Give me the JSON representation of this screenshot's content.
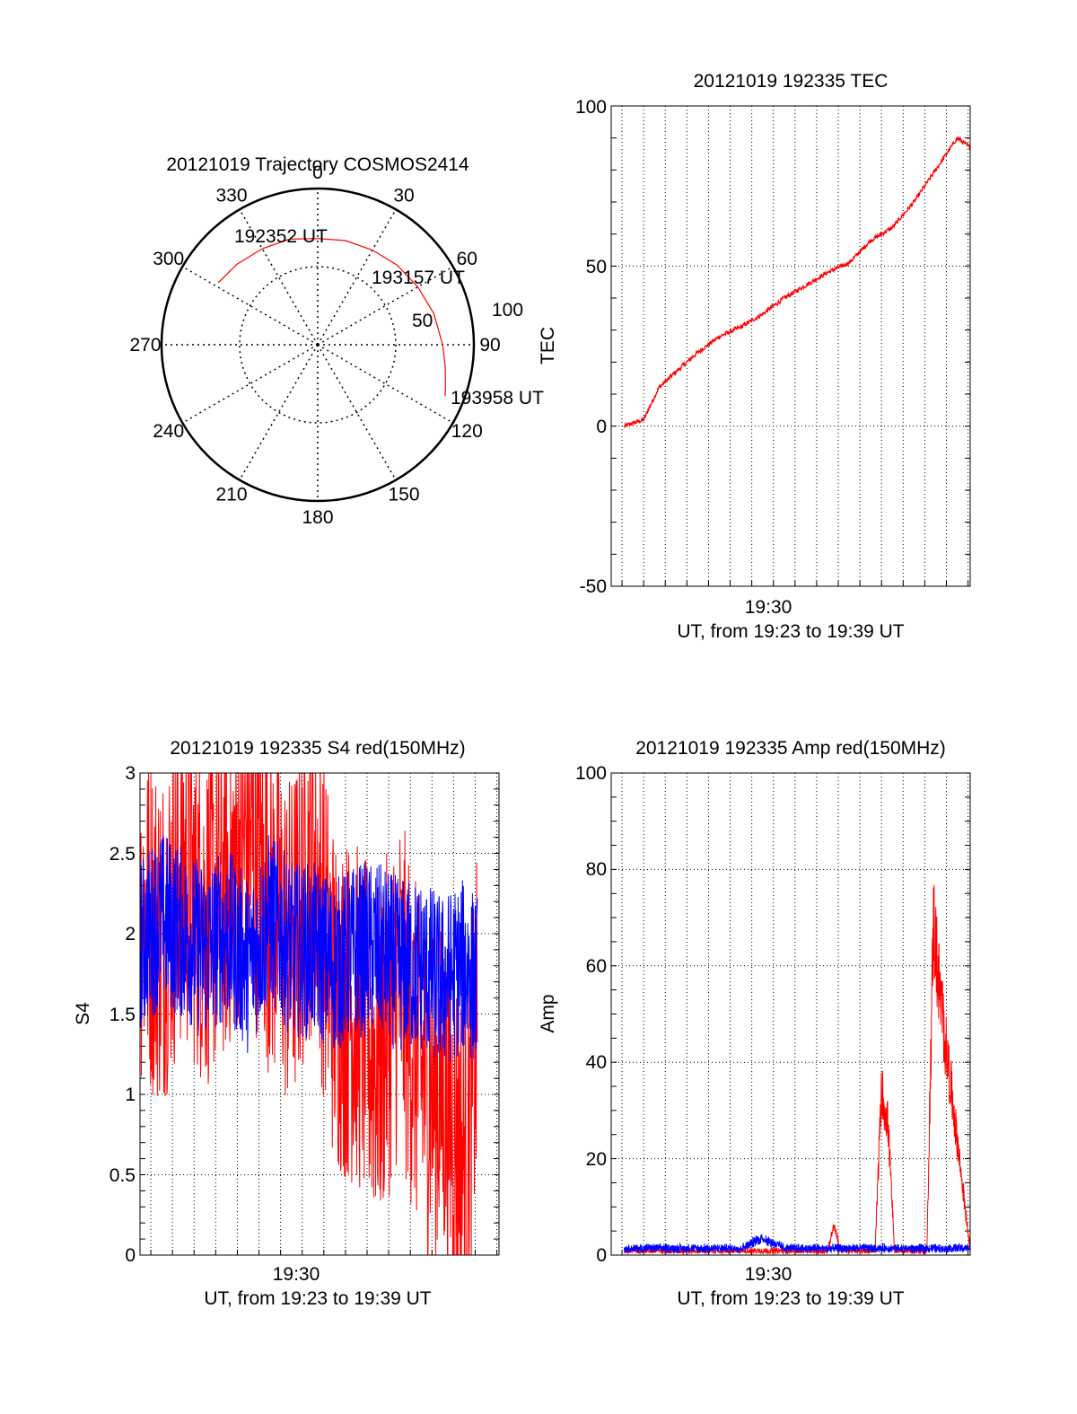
{
  "colors": {
    "red": "#ff0000",
    "blue": "#0000ff",
    "axis": "#000000",
    "grid": "#000000"
  },
  "chart_data": [
    {
      "type": "polar",
      "title": "20121019 Trajectory COSMOS2414",
      "angle_labels": [
        "0",
        "30",
        "60",
        "90",
        "120",
        "150",
        "180",
        "210",
        "240",
        "270",
        "300",
        "330"
      ],
      "radial_tick_labels": [
        "50",
        "100"
      ],
      "series": [
        {
          "color": "red",
          "azimuth_deg": [
            302,
            315,
            330,
            345,
            0,
            15,
            30,
            45,
            60,
            75,
            90,
            100,
            108,
            112
          ],
          "zenith_angle": [
            75,
            73,
            71,
            70,
            68,
            69,
            70,
            72,
            74,
            77,
            80,
            83,
            86,
            88
          ]
        }
      ],
      "annotations": [
        "192352 UT",
        "193157 UT",
        "193958 UT"
      ]
    },
    {
      "type": "line",
      "title": "20121019 192335 TEC",
      "ylabel": "TEC",
      "xlabel": "UT, from 19:23 to 19:39 UT",
      "xtick_labels": [
        "19:30"
      ],
      "ytick_labels": [
        "-50",
        "0",
        "50",
        "100"
      ],
      "ylim": [
        -50,
        100
      ],
      "grid": true,
      "series": [
        {
          "color": "red",
          "x_minutes_utc": [
            1403.6,
            1404.5,
            1405.2,
            1406.0,
            1407.0,
            1408.0,
            1409.0,
            1410.0,
            1411.0,
            1412.0,
            1413.0,
            1414.0,
            1415.0,
            1416.0,
            1417.0,
            1418.0,
            1419.0,
            1419.6
          ],
          "values": [
            0,
            2,
            12,
            17,
            23,
            28,
            31,
            35,
            40,
            44,
            48,
            51,
            58,
            62,
            70,
            80,
            90,
            87
          ]
        }
      ]
    },
    {
      "type": "line",
      "title": "20121019 192335 S4 red(150MHz)",
      "ylabel": "S4",
      "xlabel": "UT, from 19:23 to 19:39 UT",
      "xtick_labels": [
        "19:30"
      ],
      "ytick_labels": [
        "0",
        "0.5",
        "1",
        "1.5",
        "2",
        "2.5",
        "3"
      ],
      "ylim": [
        0,
        3
      ],
      "grid": true,
      "series": [
        {
          "color": "red",
          "x_minutes_utc": [
            1402.8,
            1404,
            1405,
            1406,
            1407,
            1408,
            1409,
            1410,
            1411,
            1412,
            1413,
            1414,
            1415,
            1416,
            1417,
            1418,
            1418.6
          ],
          "values": [
            2.2,
            2.0,
            2.4,
            2.1,
            2.3,
            2.6,
            2.2,
            1.9,
            2.5,
            1.6,
            1.5,
            1.2,
            1.7,
            1.1,
            1.0,
            0.6,
            1.4
          ]
        },
        {
          "color": "blue",
          "x_minutes_utc": [
            1402.8,
            1404,
            1405,
            1406,
            1407,
            1408,
            1409,
            1410,
            1411,
            1412,
            1413,
            1414,
            1415,
            1416,
            1417,
            1418,
            1418.6
          ],
          "values": [
            1.9,
            2.1,
            2.0,
            1.9,
            2.0,
            1.8,
            2.1,
            1.9,
            1.9,
            1.8,
            1.9,
            1.9,
            1.8,
            1.8,
            1.7,
            1.8,
            1.7
          ]
        }
      ]
    },
    {
      "type": "line",
      "title": "20121019 192335 Amp red(150MHz)",
      "ylabel": "Amp",
      "xlabel": "UT, from 19:23 to 19:39 UT",
      "xtick_labels": [
        "19:30"
      ],
      "ytick_labels": [
        "0",
        "20",
        "40",
        "60",
        "80",
        "100"
      ],
      "ylim": [
        0,
        100
      ],
      "grid": true,
      "series": [
        {
          "color": "red",
          "x_minutes_utc": [
            1403.6,
            1413.0,
            1413.3,
            1413.6,
            1415.2,
            1415.5,
            1415.8,
            1416.1,
            1417.6,
            1417.9,
            1418.2,
            1419.6
          ],
          "values": [
            1,
            1,
            7,
            1,
            1,
            38,
            30,
            1,
            1,
            77,
            60,
            1
          ]
        },
        {
          "color": "blue",
          "x_minutes_utc": [
            1403.6,
            1405,
            1407,
            1409,
            1410,
            1411,
            1413,
            1415,
            1417,
            1419.6
          ],
          "values": [
            1.5,
            1.6,
            1.5,
            1.6,
            4,
            1.6,
            1.5,
            1.6,
            1.5,
            1.6
          ]
        }
      ]
    }
  ]
}
